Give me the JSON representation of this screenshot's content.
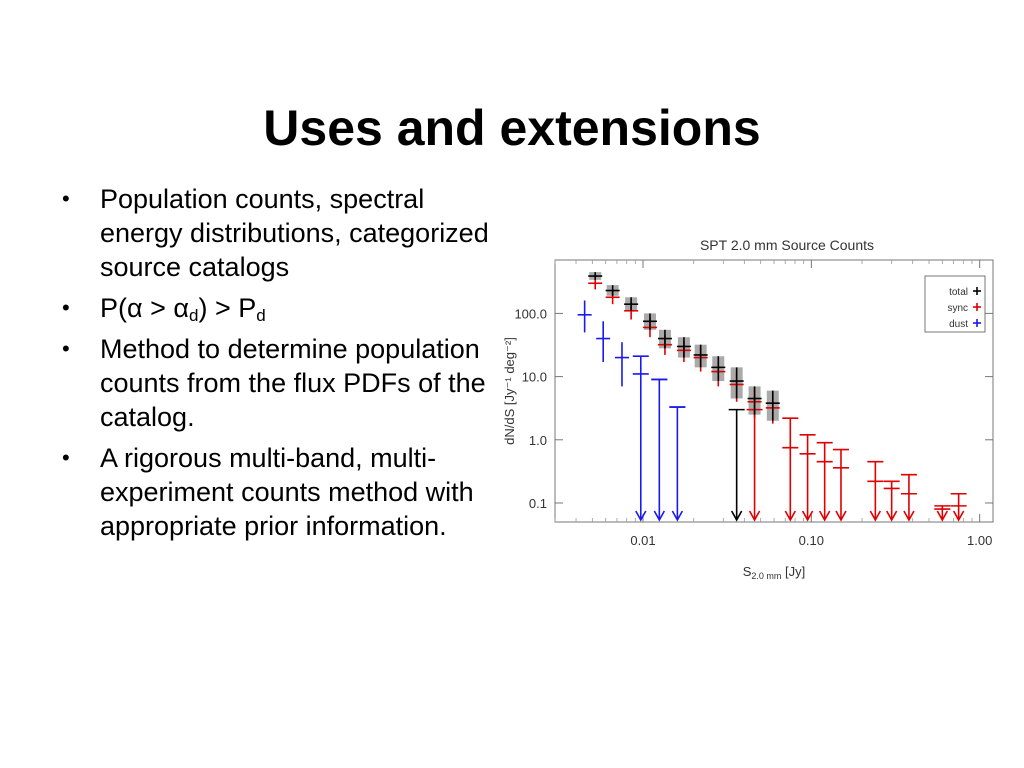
{
  "slide": {
    "title": "Uses and extensions",
    "bullets": [
      {
        "text": "Population counts, spectral energy distributions, categorized source catalogs"
      },
      {
        "pre": "P(α > α",
        "sub1": "d",
        "mid": ") > P",
        "sub2": "d"
      },
      {
        "text": "Method to determine population counts from the flux PDFs of the catalog."
      },
      {
        "text": "A rigorous multi-band, multi-experiment counts method with appropriate prior information."
      }
    ],
    "bullet_glyph": "•"
  },
  "chart_data": {
    "type": "scatter",
    "title": "SPT 2.0 mm Source Counts",
    "xlabel_main": "S",
    "xlabel_sub": "2.0 mm",
    "xlabel_unit": " [Jy]",
    "ylabel": "dN/dS [Jy⁻¹ deg⁻²]",
    "x_scale": "log",
    "y_scale": "log",
    "xlim": [
      0.003,
      1.2
    ],
    "ylim": [
      0.05,
      700
    ],
    "x_ticks": [
      0.01,
      0.1,
      1.0
    ],
    "x_tick_labels": [
      "0.01",
      "0.10",
      "1.00"
    ],
    "y_ticks": [
      0.1,
      1.0,
      10.0,
      100.0
    ],
    "y_tick_labels": [
      "0.1",
      "1.0",
      "10.0",
      "100.0"
    ],
    "grid": false,
    "legend_position": "top-right",
    "series": [
      {
        "name": "total",
        "color": "#000000",
        "points": [
          {
            "x": 0.0052,
            "y": 390,
            "lo": 340,
            "hi": 450
          },
          {
            "x": 0.0066,
            "y": 230,
            "lo": 190,
            "hi": 280
          },
          {
            "x": 0.0085,
            "y": 140,
            "lo": 110,
            "hi": 180
          },
          {
            "x": 0.011,
            "y": 75,
            "lo": 55,
            "hi": 100
          },
          {
            "x": 0.0135,
            "y": 40,
            "lo": 28,
            "hi": 55
          },
          {
            "x": 0.0175,
            "y": 30,
            "lo": 20,
            "hi": 42
          },
          {
            "x": 0.022,
            "y": 22,
            "lo": 14,
            "hi": 32
          },
          {
            "x": 0.028,
            "y": 14,
            "lo": 8.5,
            "hi": 21
          },
          {
            "x": 0.036,
            "y": 8.5,
            "lo": 4.5,
            "hi": 14
          },
          {
            "x": 0.046,
            "y": 4.5,
            "lo": 2.5,
            "hi": 7
          },
          {
            "x": 0.059,
            "y": 3.8,
            "lo": 2,
            "hi": 6
          }
        ]
      },
      {
        "name": "sync",
        "color": "#e00000",
        "points": [
          {
            "x": 0.0052,
            "y": 300,
            "lo": 240,
            "hi": 380
          },
          {
            "x": 0.0066,
            "y": 180,
            "lo": 140,
            "hi": 230
          },
          {
            "x": 0.0085,
            "y": 110,
            "lo": 80,
            "hi": 150
          },
          {
            "x": 0.011,
            "y": 60,
            "lo": 42,
            "hi": 85
          },
          {
            "x": 0.0135,
            "y": 32,
            "lo": 22,
            "hi": 45
          },
          {
            "x": 0.0175,
            "y": 26,
            "lo": 17,
            "hi": 37
          },
          {
            "x": 0.022,
            "y": 20,
            "lo": 12,
            "hi": 30
          },
          {
            "x": 0.028,
            "y": 12,
            "lo": 7,
            "hi": 19
          },
          {
            "x": 0.036,
            "y": 7.5,
            "lo": 4,
            "hi": 12
          },
          {
            "x": 0.046,
            "y": 4,
            "lo": 2.2,
            "hi": 6.5
          },
          {
            "x": 0.059,
            "y": 3.2,
            "lo": 1.8,
            "hi": 5.5
          },
          {
            "x": 0.075,
            "y": 0.75,
            "lo": 0.065,
            "hi": 2.2,
            "limit": true
          },
          {
            "x": 0.095,
            "y": 0.6,
            "lo": 0.065,
            "hi": 1.2,
            "limit": true
          },
          {
            "x": 0.12,
            "y": 0.45,
            "lo": 0.065,
            "hi": 0.9,
            "limit": true
          },
          {
            "x": 0.15,
            "y": 0.36,
            "lo": 0.065,
            "hi": 0.7,
            "limit": true
          },
          {
            "x": 0.24,
            "y": 0.22,
            "lo": 0.065,
            "hi": 0.45,
            "limit": true
          },
          {
            "x": 0.3,
            "y": 0.17,
            "lo": 0.065,
            "hi": 0.22,
            "limit": true
          },
          {
            "x": 0.38,
            "y": 0.14,
            "lo": 0.065,
            "hi": 0.28,
            "limit": true
          },
          {
            "x": 0.6,
            "y": 0.08,
            "lo": 0.065,
            "hi": 0.09,
            "limit": true
          },
          {
            "x": 0.75,
            "y": 0.09,
            "lo": 0.065,
            "hi": 0.14,
            "limit": true
          }
        ]
      },
      {
        "name": "dust",
        "color": "#1a1aee",
        "points": [
          {
            "x": 0.0045,
            "y": 95,
            "lo": 50,
            "hi": 160
          },
          {
            "x": 0.0058,
            "y": 40,
            "lo": 17,
            "hi": 75
          },
          {
            "x": 0.0075,
            "y": 20,
            "lo": 7,
            "hi": 35
          },
          {
            "x": 0.0097,
            "y": 11,
            "lo": 0.065,
            "hi": 21,
            "limit": true
          },
          {
            "x": 0.0125,
            "y": 9,
            "lo": 0.065,
            "hi": 9,
            "limit": true
          },
          {
            "x": 0.016,
            "y": 3.3,
            "lo": 0.065,
            "hi": 3.3,
            "limit": true
          }
        ]
      }
    ],
    "upper_limits": [
      {
        "x": 0.036,
        "y": 3,
        "color": "#000000"
      },
      {
        "x": 0.046,
        "y": 3,
        "color": "#e00000"
      }
    ]
  }
}
